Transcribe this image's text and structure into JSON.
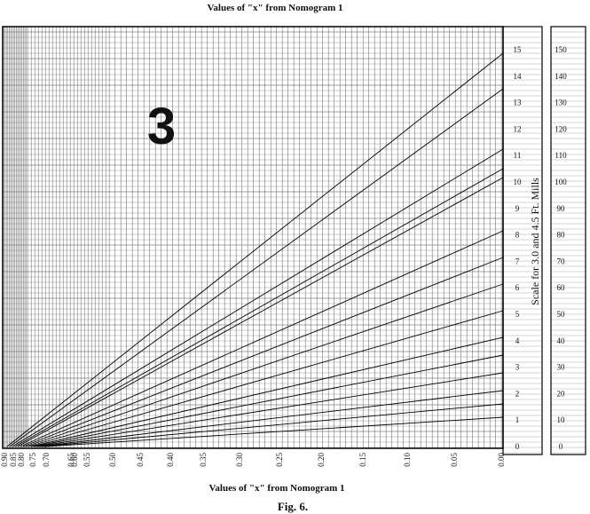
{
  "header": {
    "title": "Values of \"x\" from Nomogram 1"
  },
  "figure_number": "3",
  "right_scale": {
    "title": "Scale for 3.0 and 4.5 Ft. Mills",
    "inner_ticks": [
      "0",
      "1",
      "2",
      "3",
      "4",
      "5",
      "6",
      "7",
      "8",
      "9",
      "10",
      "11",
      "12",
      "13",
      "14",
      "15"
    ],
    "outer_ticks": [
      "0",
      "10",
      "20",
      "30",
      "40",
      "50",
      "60",
      "70",
      "80",
      "90",
      "100",
      "110",
      "120",
      "130",
      "140",
      "150"
    ]
  },
  "bottom_axis": {
    "ticks": [
      "0.90",
      "0.85",
      "0.80",
      "0.75",
      "0.70",
      "0.65",
      "0.60",
      "0.55",
      "0.50",
      "0.45",
      "0.40",
      "0.35",
      "0.30",
      "0.25",
      "0.20",
      "0.15",
      "0.10",
      "0.05",
      "0.00"
    ],
    "label": "Values of \"x\" from Nomogram 1"
  },
  "caption": "Fig. 6."
}
